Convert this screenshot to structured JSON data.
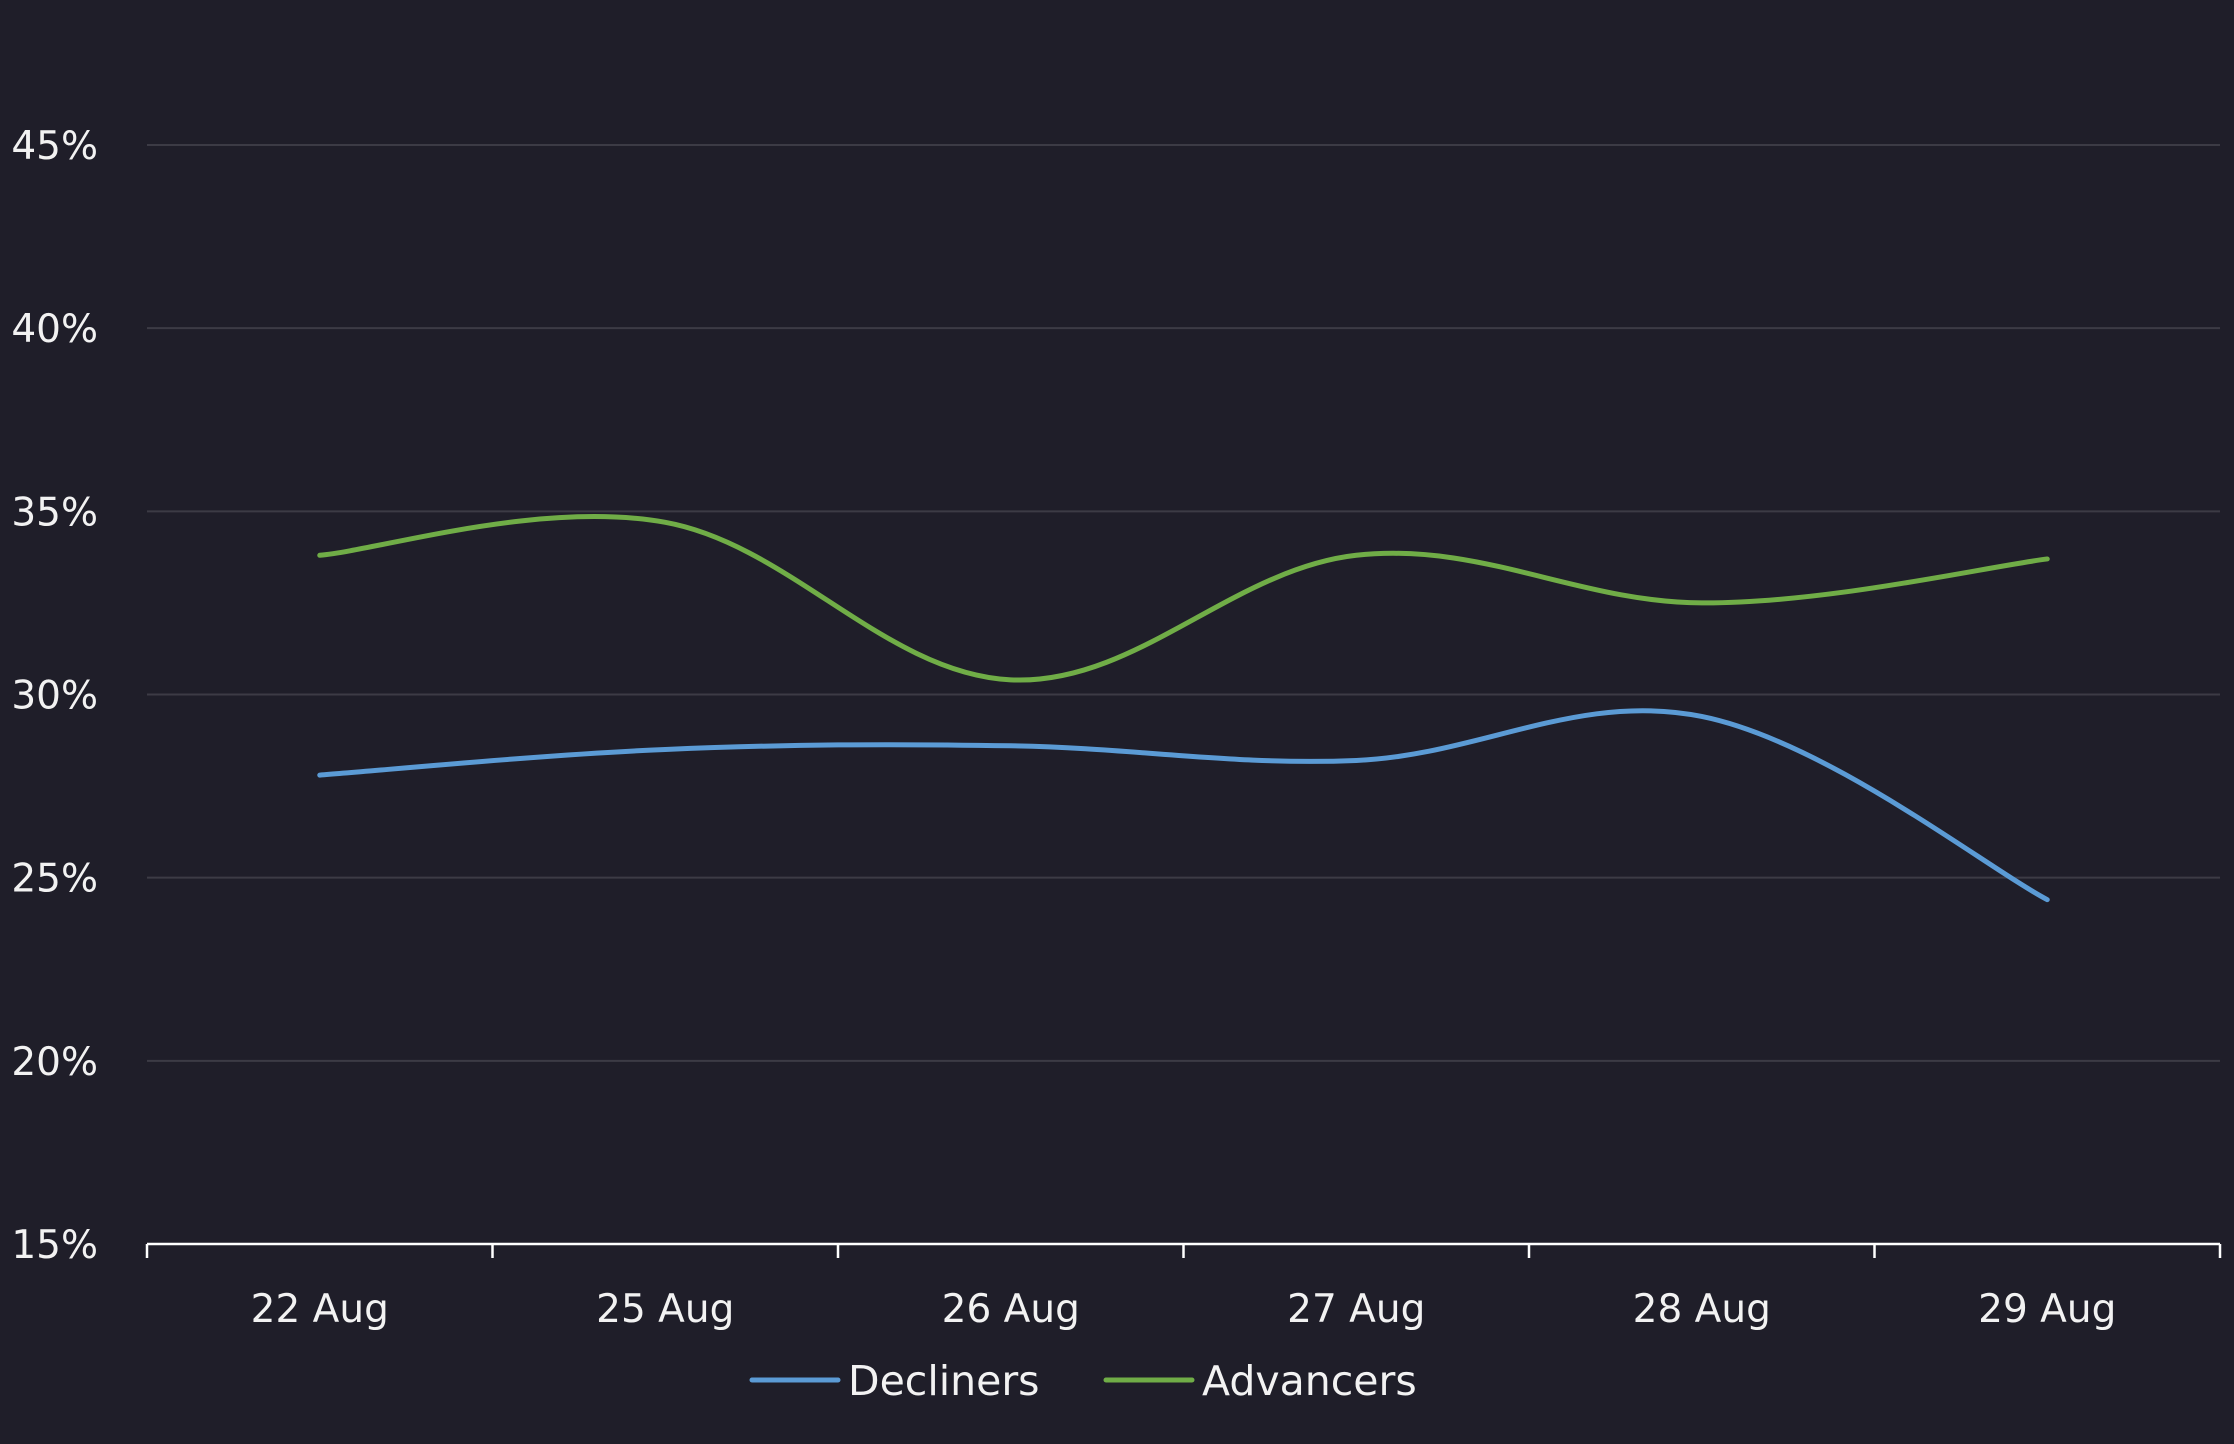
{
  "chart_data": {
    "type": "line",
    "categories": [
      "22 Aug",
      "25 Aug",
      "26 Aug",
      "27 Aug",
      "28 Aug",
      "29 Aug"
    ],
    "series": [
      {
        "name": "Decliners",
        "values": [
          27.8,
          28.5,
          28.6,
          28.2,
          29.4,
          24.4
        ],
        "color": "#5b9bd5"
      },
      {
        "name": "Advancers",
        "values": [
          33.8,
          34.7,
          30.4,
          33.8,
          32.5,
          33.7
        ],
        "color": "#70ad47"
      }
    ],
    "y_ticks": [
      "15%",
      "20%",
      "25%",
      "30%",
      "35%",
      "40%",
      "45%"
    ],
    "ylim": [
      15,
      48
    ],
    "grid": true,
    "legend_position": "bottom",
    "colors": {
      "background": "#1f1e29",
      "gridline": "#3c3b45",
      "axis": "#ffffff",
      "text": "#f2f2f2"
    }
  }
}
